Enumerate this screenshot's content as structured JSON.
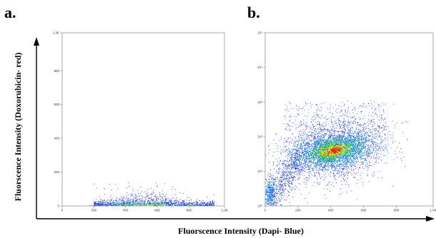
{
  "figure": {
    "xlabel": "Fluorscence Intensity (Dapi- Blue)",
    "ylabel": "Fluorscence Intensity (Doxorubicin- red)"
  },
  "chart_data": [
    {
      "type": "scatter",
      "panel_label": "a.",
      "xscale": "linear",
      "yscale": "linear",
      "xlim": [
        0,
        1024
      ],
      "ylim": [
        0,
        1024
      ],
      "x_ticks": [
        {
          "v": 0,
          "label": "0"
        },
        {
          "v": 200,
          "label": "200"
        },
        {
          "v": 400,
          "label": "400"
        },
        {
          "v": 600,
          "label": "600"
        },
        {
          "v": 800,
          "label": "800"
        },
        {
          "v": 1024,
          "label": "1.0K"
        }
      ],
      "y_ticks": [
        {
          "v": 0,
          "label": "0"
        },
        {
          "v": 200,
          "label": "200"
        },
        {
          "v": 400,
          "label": "400"
        },
        {
          "v": 600,
          "label": "600"
        },
        {
          "v": 800,
          "label": "800"
        },
        {
          "v": 1024,
          "label": "1.0K"
        }
      ],
      "grid": false,
      "density_colormap": [
        "#1f3bdc",
        "#17a6e6",
        "#27c45a",
        "#f0e10a",
        "#e0281e"
      ],
      "population": {
        "x_range": [
          200,
          960
        ],
        "x_peak": 520,
        "y_range": [
          0,
          150
        ],
        "y_typical": 30,
        "density": "low, flat band along the x axis"
      }
    },
    {
      "type": "scatter",
      "panel_label": "b.",
      "xscale": "linear",
      "yscale": "log",
      "xlim": [
        0,
        1024
      ],
      "ylim": [
        1,
        100000
      ],
      "x_ticks": [
        {
          "v": 0,
          "label": "0"
        },
        {
          "v": 200,
          "label": "200"
        },
        {
          "v": 400,
          "label": "400"
        },
        {
          "v": 600,
          "label": "600"
        },
        {
          "v": 800,
          "label": "800"
        },
        {
          "v": 1024,
          "label": "1.0K"
        }
      ],
      "y_ticks": [
        {
          "v": 1,
          "label": "10⁰"
        },
        {
          "v": 10,
          "label": "10¹"
        },
        {
          "v": 100,
          "label": "10²"
        },
        {
          "v": 1000,
          "label": "10³"
        },
        {
          "v": 10000,
          "label": "10⁴"
        },
        {
          "v": 100000,
          "label": "10⁵"
        }
      ],
      "grid": false,
      "density_colormap": [
        "#1f3bdc",
        "#17a6e6",
        "#27c45a",
        "#f0e10a",
        "#e0281e"
      ],
      "population": {
        "main_cluster_center": [
          420,
          40
        ],
        "main_cluster_x_range": [
          200,
          800
        ],
        "main_cluster_y_range": [
          10,
          200
        ],
        "upper_spread_y_max": 1000,
        "low_cluster_center": [
          30,
          2
        ],
        "density": "dense cluster with hot core near x≈400, y≈40"
      }
    }
  ]
}
